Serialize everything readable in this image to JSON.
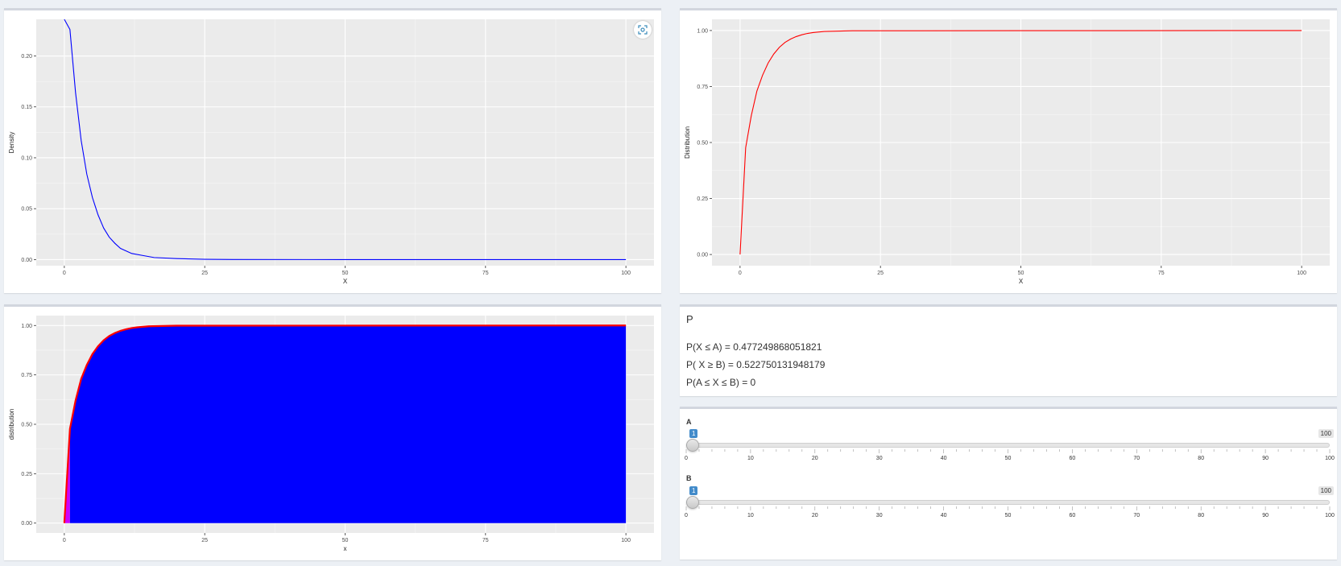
{
  "plots": {
    "density": {
      "ylabel": "Density",
      "xlabel": "X",
      "line_color": "#0000ff",
      "ylim": [
        -0.006,
        0.236
      ],
      "xlim": [
        -5,
        105
      ],
      "x_ticks": [
        0,
        25,
        50,
        75,
        100
      ],
      "y_ticks": [
        0,
        0.05,
        0.1,
        0.15,
        0.2
      ],
      "x_tick_labels": [
        "0",
        "25",
        "50",
        "75",
        "100"
      ],
      "y_tick_labels": [
        "0.00",
        "0.05",
        "0.10",
        "0.15",
        "0.20"
      ],
      "x": [
        0,
        1,
        2,
        3,
        4,
        5,
        6,
        7,
        8,
        9,
        10,
        12,
        14,
        16,
        20,
        25,
        30,
        50,
        75,
        100
      ],
      "y": [
        0.236,
        0.226,
        0.164,
        0.117,
        0.084,
        0.061,
        0.044,
        0.031,
        0.022,
        0.016,
        0.011,
        0.006,
        0.004,
        0.002,
        0.001,
        0.0003,
        0.0001,
        0,
        0,
        0
      ]
    },
    "distribution": {
      "ylabel": "Distribution",
      "xlabel": "X",
      "line_color": "#ff0000",
      "ylim": [
        -0.05,
        1.05
      ],
      "xlim": [
        -5,
        105
      ],
      "x_ticks": [
        0,
        25,
        50,
        75,
        100
      ],
      "y_ticks": [
        0,
        0.25,
        0.5,
        0.75,
        1.0
      ],
      "x_tick_labels": [
        "0",
        "25",
        "50",
        "75",
        "100"
      ],
      "y_tick_labels": [
        "0.00",
        "0.25",
        "0.50",
        "0.75",
        "1.00"
      ],
      "x": [
        0,
        1,
        2,
        3,
        4,
        5,
        6,
        7,
        8,
        9,
        10,
        11,
        12,
        13,
        15,
        20,
        100
      ],
      "y": [
        0,
        0.477,
        0.62,
        0.73,
        0.8,
        0.855,
        0.895,
        0.925,
        0.947,
        0.962,
        0.973,
        0.981,
        0.987,
        0.991,
        0.996,
        0.999,
        1.0
      ]
    },
    "shaded": {
      "ylabel": "distribution",
      "xlabel": "x",
      "line_color": "#ff0000",
      "fill_color": "#0000ff",
      "fill_left_color": "#cc00ff",
      "ylim": [
        -0.05,
        1.05
      ],
      "xlim": [
        -5,
        105
      ],
      "x_ticks": [
        0,
        25,
        50,
        75,
        100
      ],
      "y_ticks": [
        0,
        0.25,
        0.5,
        0.75,
        1.0
      ],
      "x_tick_labels": [
        "0",
        "25",
        "50",
        "75",
        "100"
      ],
      "y_tick_labels": [
        "0.00",
        "0.25",
        "0.50",
        "0.75",
        "1.00"
      ],
      "x": [
        0,
        1,
        2,
        3,
        4,
        5,
        6,
        7,
        8,
        9,
        10,
        11,
        12,
        13,
        15,
        20,
        100
      ],
      "y": [
        0,
        0.477,
        0.62,
        0.73,
        0.8,
        0.855,
        0.895,
        0.925,
        0.947,
        0.962,
        0.973,
        0.981,
        0.987,
        0.991,
        0.996,
        0.999,
        1.0
      ]
    }
  },
  "probabilities": {
    "title": "P",
    "p_le_a": "P(X ≤ A) = 0.477249868051821",
    "p_ge_b": "P( X ≥ B) = 0.522750131948179",
    "p_between": "P(A ≤ X ≤ B) = 0"
  },
  "sliders": {
    "min": 0,
    "max": 100,
    "max_label": "100",
    "grid_labels": [
      "0",
      "10",
      "20",
      "30",
      "40",
      "50",
      "60",
      "70",
      "80",
      "90",
      "100"
    ],
    "a": {
      "label": "A",
      "value": 1,
      "value_label": "1"
    },
    "b": {
      "label": "B",
      "value": 1,
      "value_label": "1"
    }
  }
}
